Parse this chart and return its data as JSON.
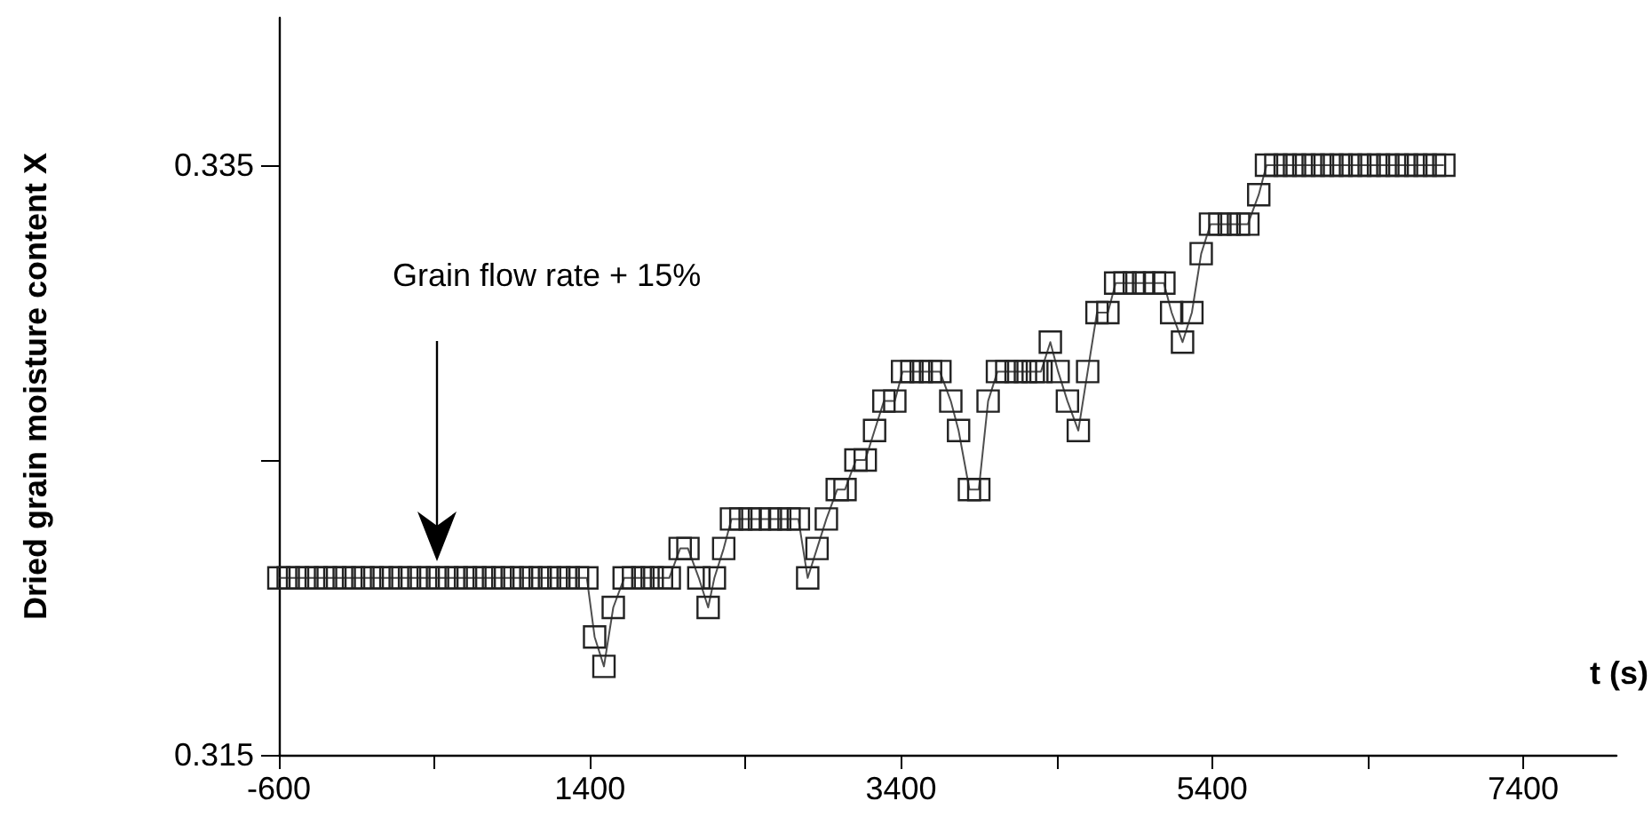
{
  "chart_data": {
    "type": "line",
    "ylabel": "Dried grain moisture content X",
    "xlabel": "t (s)",
    "xlim": [
      -600,
      8000
    ],
    "xticks": [
      -600,
      {
        "value": 400,
        "label": null
      },
      1400,
      {
        "value": 2400,
        "label": null
      },
      3400,
      {
        "value": 4400,
        "label": null
      },
      5400,
      {
        "value": 6400,
        "label": null
      },
      7400
    ],
    "ylim": [
      0.315,
      0.34
    ],
    "yticks": [
      0.315,
      {
        "value": 0.325,
        "label": null
      },
      0.335
    ],
    "marker": "square",
    "line_style": "solid",
    "annotations": [
      "Grain flow rate + 15%"
    ],
    "series": [
      {
        "color": "#222222",
        "x": [
          -600,
          -540,
          -480,
          -420,
          -360,
          -300,
          -240,
          -180,
          -120,
          -60,
          0,
          60,
          120,
          180,
          240,
          300,
          360,
          420,
          480,
          540,
          600,
          660,
          720,
          780,
          840,
          900,
          960,
          1020,
          1080,
          1140,
          1200,
          1260,
          1320,
          1380,
          1430,
          1490,
          1550,
          1620,
          1680,
          1740,
          1800,
          1860,
          1910,
          1980,
          2030,
          2100,
          2160,
          2200,
          2260,
          2310,
          2370,
          2430,
          2490,
          2560,
          2620,
          2680,
          2740,
          2800,
          2860,
          2920,
          2990,
          3040,
          3110,
          3170,
          3230,
          3290,
          3360,
          3410,
          3470,
          3530,
          3590,
          3650,
          3720,
          3770,
          3840,
          3900,
          3960,
          4020,
          4080,
          4140,
          4200,
          4250,
          4300,
          4360,
          4410,
          4470,
          4540,
          4600,
          4660,
          4730,
          4780,
          4840,
          4900,
          4960,
          5030,
          5090,
          5140,
          5210,
          5270,
          5330,
          5390,
          5450,
          5510,
          5570,
          5630,
          5700,
          5750,
          5810,
          5870,
          5930,
          5990,
          6050,
          6110,
          6170,
          6230,
          6290,
          6350,
          6410,
          6470,
          6530,
          6590,
          6650,
          6710,
          6770,
          6830,
          6890
        ],
        "values": [
          0.321,
          0.321,
          0.321,
          0.321,
          0.321,
          0.321,
          0.321,
          0.321,
          0.321,
          0.321,
          0.321,
          0.321,
          0.321,
          0.321,
          0.321,
          0.321,
          0.321,
          0.321,
          0.321,
          0.321,
          0.321,
          0.321,
          0.321,
          0.321,
          0.321,
          0.321,
          0.321,
          0.321,
          0.321,
          0.321,
          0.321,
          0.321,
          0.321,
          0.321,
          0.319,
          0.318,
          0.32,
          0.321,
          0.321,
          0.321,
          0.321,
          0.321,
          0.321,
          0.322,
          0.322,
          0.321,
          0.32,
          0.321,
          0.322,
          0.323,
          0.323,
          0.323,
          0.323,
          0.323,
          0.323,
          0.323,
          0.323,
          0.321,
          0.322,
          0.323,
          0.324,
          0.324,
          0.325,
          0.325,
          0.326,
          0.327,
          0.327,
          0.328,
          0.328,
          0.328,
          0.328,
          0.328,
          0.327,
          0.326,
          0.324,
          0.324,
          0.327,
          0.328,
          0.328,
          0.328,
          0.328,
          0.328,
          0.328,
          0.329,
          0.328,
          0.327,
          0.326,
          0.328,
          0.33,
          0.33,
          0.331,
          0.331,
          0.331,
          0.331,
          0.331,
          0.331,
          0.33,
          0.329,
          0.33,
          0.332,
          0.333,
          0.333,
          0.333,
          0.333,
          0.333,
          0.334,
          0.335,
          0.335,
          0.335,
          0.335,
          0.335,
          0.335,
          0.335,
          0.335,
          0.335,
          0.335,
          0.335,
          0.335,
          0.335,
          0.335,
          0.335,
          0.335,
          0.335,
          0.335,
          0.335,
          0.335
        ]
      }
    ]
  }
}
